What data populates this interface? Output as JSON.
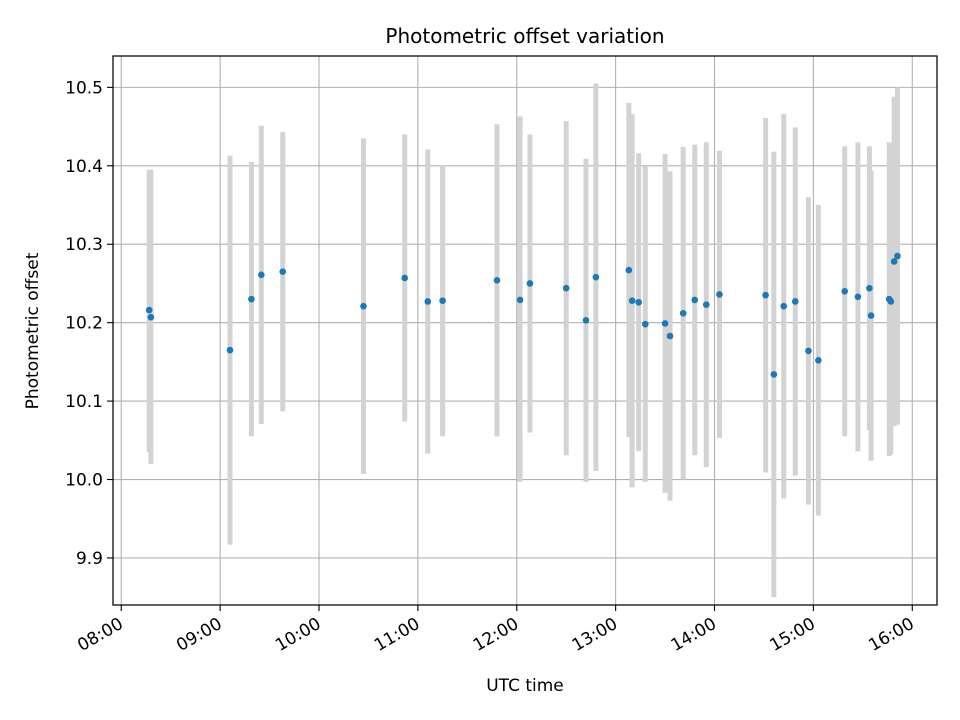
{
  "chart_data": {
    "type": "scatter",
    "title": "Photometric offset variation",
    "xlabel": "UTC time",
    "ylabel": "Photometric offset",
    "x_ticks": [
      "08:00",
      "09:00",
      "10:00",
      "11:00",
      "12:00",
      "13:00",
      "14:00",
      "15:00",
      "16:00"
    ],
    "xlim": [
      "07:55",
      "16:15"
    ],
    "y_ticks": [
      "9.9",
      "10.0",
      "10.1",
      "10.2",
      "10.3",
      "10.4",
      "10.5"
    ],
    "ylim": [
      9.84,
      10.54
    ],
    "grid": true,
    "colors": {
      "point": "#1f77b4",
      "errorbar": "#d3d3d3",
      "grid": "#b0b0b0"
    },
    "points": [
      {
        "t": "08:17",
        "y": 10.216,
        "lo": 10.035,
        "hi": 10.395
      },
      {
        "t": "08:18",
        "y": 10.207,
        "lo": 10.02,
        "hi": 10.395
      },
      {
        "t": "09:06",
        "y": 10.165,
        "lo": 9.917,
        "hi": 10.413
      },
      {
        "t": "09:19",
        "y": 10.23,
        "lo": 10.055,
        "hi": 10.405
      },
      {
        "t": "09:25",
        "y": 10.261,
        "lo": 10.071,
        "hi": 10.451
      },
      {
        "t": "09:38",
        "y": 10.265,
        "lo": 10.087,
        "hi": 10.443
      },
      {
        "t": "10:27",
        "y": 10.221,
        "lo": 10.007,
        "hi": 10.435
      },
      {
        "t": "10:52",
        "y": 10.257,
        "lo": 10.074,
        "hi": 10.44
      },
      {
        "t": "11:06",
        "y": 10.227,
        "lo": 10.033,
        "hi": 10.421
      },
      {
        "t": "11:15",
        "y": 10.228,
        "lo": 10.055,
        "hi": 10.401
      },
      {
        "t": "11:48",
        "y": 10.254,
        "lo": 10.055,
        "hi": 10.453
      },
      {
        "t": "12:02",
        "y": 10.229,
        "lo": 9.997,
        "hi": 10.463
      },
      {
        "t": "12:08",
        "y": 10.25,
        "lo": 10.06,
        "hi": 10.44
      },
      {
        "t": "12:30",
        "y": 10.244,
        "lo": 10.031,
        "hi": 10.457
      },
      {
        "t": "12:42",
        "y": 10.203,
        "lo": 9.997,
        "hi": 10.409
      },
      {
        "t": "12:48",
        "y": 10.258,
        "lo": 10.011,
        "hi": 10.505
      },
      {
        "t": "13:08",
        "y": 10.267,
        "lo": 10.054,
        "hi": 10.48
      },
      {
        "t": "13:10",
        "y": 10.228,
        "lo": 9.99,
        "hi": 10.466
      },
      {
        "t": "13:14",
        "y": 10.226,
        "lo": 10.036,
        "hi": 10.416
      },
      {
        "t": "13:18",
        "y": 10.198,
        "lo": 9.997,
        "hi": 10.399
      },
      {
        "t": "13:30",
        "y": 10.199,
        "lo": 9.983,
        "hi": 10.415
      },
      {
        "t": "13:33",
        "y": 10.183,
        "lo": 9.973,
        "hi": 10.393
      },
      {
        "t": "13:41",
        "y": 10.212,
        "lo": 10.0,
        "hi": 10.424
      },
      {
        "t": "13:48",
        "y": 10.229,
        "lo": 10.031,
        "hi": 10.427
      },
      {
        "t": "13:55",
        "y": 10.223,
        "lo": 10.016,
        "hi": 10.43
      },
      {
        "t": "14:03",
        "y": 10.236,
        "lo": 10.053,
        "hi": 10.419
      },
      {
        "t": "14:31",
        "y": 10.235,
        "lo": 10.009,
        "hi": 10.461
      },
      {
        "t": "14:36",
        "y": 10.134,
        "lo": 9.85,
        "hi": 10.418
      },
      {
        "t": "14:42",
        "y": 10.221,
        "lo": 9.976,
        "hi": 10.466
      },
      {
        "t": "14:49",
        "y": 10.227,
        "lo": 10.005,
        "hi": 10.449
      },
      {
        "t": "14:57",
        "y": 10.164,
        "lo": 9.968,
        "hi": 10.36
      },
      {
        "t": "15:03",
        "y": 10.152,
        "lo": 9.954,
        "hi": 10.35
      },
      {
        "t": "15:19",
        "y": 10.24,
        "lo": 10.055,
        "hi": 10.425
      },
      {
        "t": "15:27",
        "y": 10.233,
        "lo": 10.036,
        "hi": 10.43
      },
      {
        "t": "15:34",
        "y": 10.244,
        "lo": 10.063,
        "hi": 10.425
      },
      {
        "t": "15:35",
        "y": 10.209,
        "lo": 10.024,
        "hi": 10.394
      },
      {
        "t": "15:46",
        "y": 10.23,
        "lo": 10.03,
        "hi": 10.43
      },
      {
        "t": "15:47",
        "y": 10.227,
        "lo": 10.032,
        "hi": 10.422
      },
      {
        "t": "15:49",
        "y": 10.278,
        "lo": 10.068,
        "hi": 10.488
      },
      {
        "t": "15:51",
        "y": 10.285,
        "lo": 10.07,
        "hi": 10.5
      }
    ]
  }
}
